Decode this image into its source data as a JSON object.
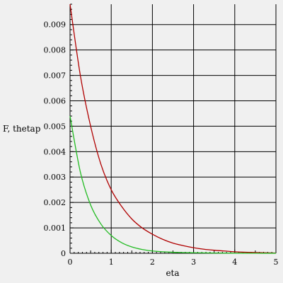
{
  "chart_data": {
    "type": "line",
    "title": "",
    "xlabel": "eta",
    "ylabel": "F, thetap",
    "xlim": [
      0,
      5
    ],
    "ylim": [
      0,
      0.0098
    ],
    "grid": true,
    "x_ticks": [
      "0",
      "1",
      "2",
      "3",
      "4",
      "5"
    ],
    "x_tick_values": [
      0,
      1,
      2,
      3,
      4,
      5
    ],
    "y_ticks": [
      "0",
      "0.001",
      "0.002",
      "0.003",
      "0.004",
      "0.005",
      "0.006",
      "0.007",
      "0.008",
      "0.009"
    ],
    "y_tick_values": [
      0,
      0.001,
      0.002,
      0.003,
      0.004,
      0.005,
      0.006,
      0.007,
      0.008,
      0.009
    ],
    "series": [
      {
        "color": "#b00000",
        "x": [
          0,
          0.25,
          0.5,
          0.75,
          1,
          1.25,
          1.5,
          1.75,
          2,
          2.25,
          2.5,
          2.75,
          3,
          3.25,
          3.5,
          3.75,
          4,
          4.25,
          4.5,
          4.75,
          5
        ],
        "y": [
          0.0098,
          0.007,
          0.005,
          0.0035,
          0.0025,
          0.00185,
          0.00135,
          0.001,
          0.00075,
          0.00055,
          0.0004,
          0.0003,
          0.00022,
          0.00016,
          0.00012,
          9e-05,
          6e-05,
          4e-05,
          3e-05,
          2e-05,
          1e-05
        ]
      },
      {
        "color": "#22bb22",
        "x": [
          0,
          0.25,
          0.5,
          0.75,
          1,
          1.25,
          1.5,
          1.75,
          2,
          2.5,
          3,
          3.5,
          4,
          4.5,
          5
        ],
        "y": [
          0.0054,
          0.0032,
          0.0019,
          0.00115,
          0.0007,
          0.00042,
          0.00025,
          0.00015,
          9e-05,
          4e-05,
          2e-05,
          1e-05,
          5e-06,
          2.5e-06,
          1e-06
        ]
      }
    ]
  }
}
